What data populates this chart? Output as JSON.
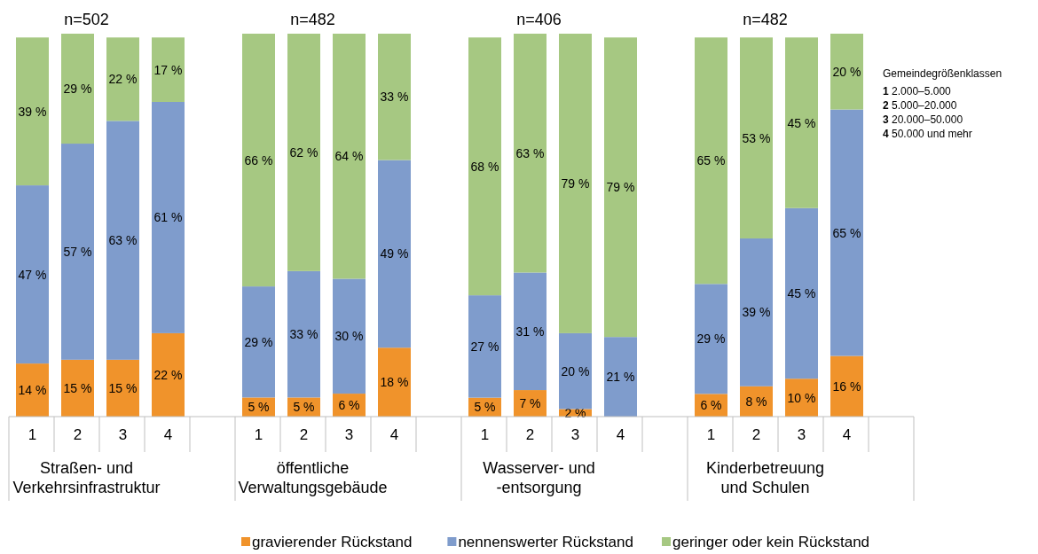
{
  "chart_data": [
    {
      "type": "bar",
      "stacked": true,
      "title": "n=502",
      "xlabel": "Straßen- und Verkehrsinfrastruktur",
      "categories": [
        "1",
        "2",
        "3",
        "4"
      ],
      "tick_labels": "x",
      "legend": "bottom",
      "series": [
        {
          "name": "gravierender Rückstand",
          "color": "#f0932b",
          "values": [
            14,
            15,
            15,
            22
          ],
          "value_labels": [
            "14 %",
            "15 %",
            "15 %",
            "22 %"
          ]
        },
        {
          "name": "nennenswerter Rückstand",
          "color": "#7f9ccc",
          "values": [
            47,
            57,
            63,
            61
          ],
          "value_labels": [
            "47 %",
            "57 %",
            "63 %",
            "61 %"
          ]
        },
        {
          "name": "geringer oder kein Rückstand",
          "color": "#a6c882",
          "values": [
            39,
            29,
            22,
            17
          ],
          "value_labels": [
            "39 %",
            "29 %",
            "22 %",
            "17 %"
          ]
        }
      ]
    },
    {
      "type": "bar",
      "stacked": true,
      "title": "n=482",
      "xlabel": "öffentliche Verwaltungsgebäude",
      "categories": [
        "1",
        "2",
        "3",
        "4"
      ],
      "tick_labels": "x",
      "series": [
        {
          "color": "#f0932b",
          "values": [
            5,
            5,
            6,
            18
          ],
          "value_labels": [
            "5 %",
            "5 %",
            "6 %",
            "18 %"
          ]
        },
        {
          "color": "#7f9ccc",
          "values": [
            29,
            33,
            30,
            49
          ],
          "value_labels": [
            "29 %",
            "33 %",
            "30 %",
            "49 %"
          ]
        },
        {
          "color": "#a6c882",
          "values": [
            66,
            62,
            64,
            33
          ],
          "value_labels": [
            "66 %",
            "62 %",
            "64 %",
            "33 %"
          ]
        }
      ]
    },
    {
      "type": "bar",
      "stacked": true,
      "title": "n=406",
      "xlabel": "Wasserver- und -entsorgung",
      "categories": [
        "1",
        "2",
        "3",
        "4"
      ],
      "tick_labels": "x",
      "series": [
        {
          "color": "#f0932b",
          "values": [
            5,
            7,
            2,
            0
          ],
          "value_labels": [
            "5 %",
            "7 %",
            "2 %",
            null
          ]
        },
        {
          "color": "#7f9ccc",
          "values": [
            27,
            31,
            20,
            21
          ],
          "value_labels": [
            "27 %",
            "31 %",
            "20 %",
            "21 %"
          ]
        },
        {
          "color": "#a6c882",
          "values": [
            68,
            63,
            79,
            79
          ],
          "value_labels": [
            "68 %",
            "63 %",
            "79 %",
            "79 %"
          ]
        }
      ]
    },
    {
      "type": "bar",
      "stacked": true,
      "title": "n=482",
      "xlabel": "Kinderbetreuung und Schulen",
      "categories": [
        "1",
        "2",
        "3",
        "4"
      ],
      "tick_labels": "x",
      "annotations": [
        "Gemeindegrößenklassen",
        "1 2.000–5.000",
        "2 5.000–20.000",
        "3 20.000–50.000",
        "4 50.000 und mehr"
      ],
      "series": [
        {
          "color": "#f0932b",
          "values": [
            6,
            8,
            10,
            16
          ],
          "value_labels": [
            "6 %",
            "8 %",
            "10 %",
            "16 %"
          ]
        },
        {
          "color": "#7f9ccc",
          "values": [
            29,
            39,
            45,
            65
          ],
          "value_labels": [
            "29 %",
            "39 %",
            "45 %",
            "65 %"
          ]
        },
        {
          "color": "#a6c882",
          "values": [
            65,
            53,
            45,
            20
          ],
          "value_labels": [
            "65 %",
            "53 %",
            "45 %",
            "20 %"
          ]
        }
      ]
    }
  ]
}
